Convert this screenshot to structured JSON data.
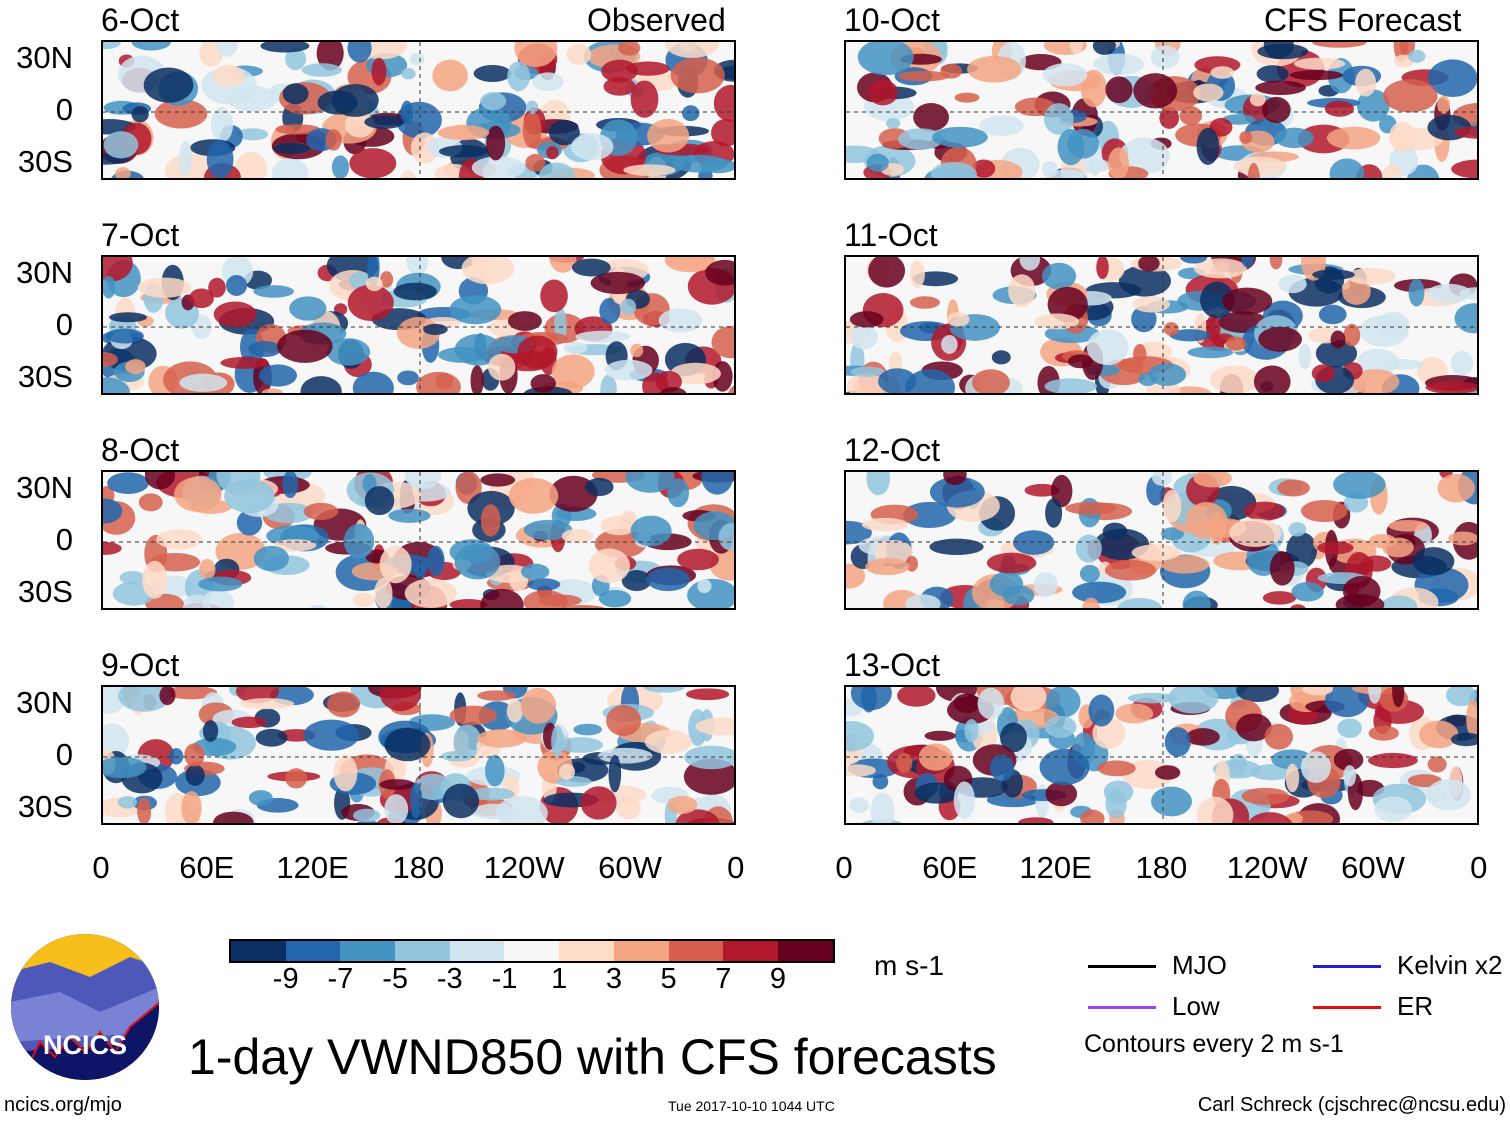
{
  "left_header": "Observed",
  "right_header": "CFS Forecast",
  "panels_left": [
    {
      "date": "6-Oct"
    },
    {
      "date": "7-Oct"
    },
    {
      "date": "8-Oct"
    },
    {
      "date": "9-Oct"
    }
  ],
  "panels_right": [
    {
      "date": "10-Oct"
    },
    {
      "date": "11-Oct"
    },
    {
      "date": "12-Oct"
    },
    {
      "date": "13-Oct"
    }
  ],
  "lat_labels": [
    "30N",
    "0",
    "30S"
  ],
  "lon_labels": [
    "0",
    "60E",
    "120E",
    "180",
    "120W",
    "60W",
    "0"
  ],
  "colorbar": {
    "colors": [
      "#0b2f62",
      "#2166ac",
      "#4393c3",
      "#92c5de",
      "#d1e5f0",
      "#f7f7f7",
      "#fddbc7",
      "#f4a582",
      "#d6604d",
      "#b2182b",
      "#67001f"
    ],
    "labels": [
      "-9",
      "-7",
      "-5",
      "-3",
      "-1",
      "1",
      "3",
      "5",
      "7",
      "9"
    ],
    "units": "m s-1"
  },
  "legend": {
    "items": [
      {
        "label": "MJO",
        "color": "#000000"
      },
      {
        "label": "Kelvin x2",
        "color": "#2020d0"
      },
      {
        "label": "Low",
        "color": "#a040f0"
      },
      {
        "label": "ER",
        "color": "#e01010"
      }
    ],
    "note": "Contours every 2 m s-1"
  },
  "title": "1-day VWND850 with CFS forecasts",
  "logo_text": "NCICS",
  "footer": {
    "url": "ncics.org/mjo",
    "timestamp": "Tue 2017-10-10 1044 UTC",
    "author": "Carl Schreck (cjschrec@ncsu.edu)"
  }
}
